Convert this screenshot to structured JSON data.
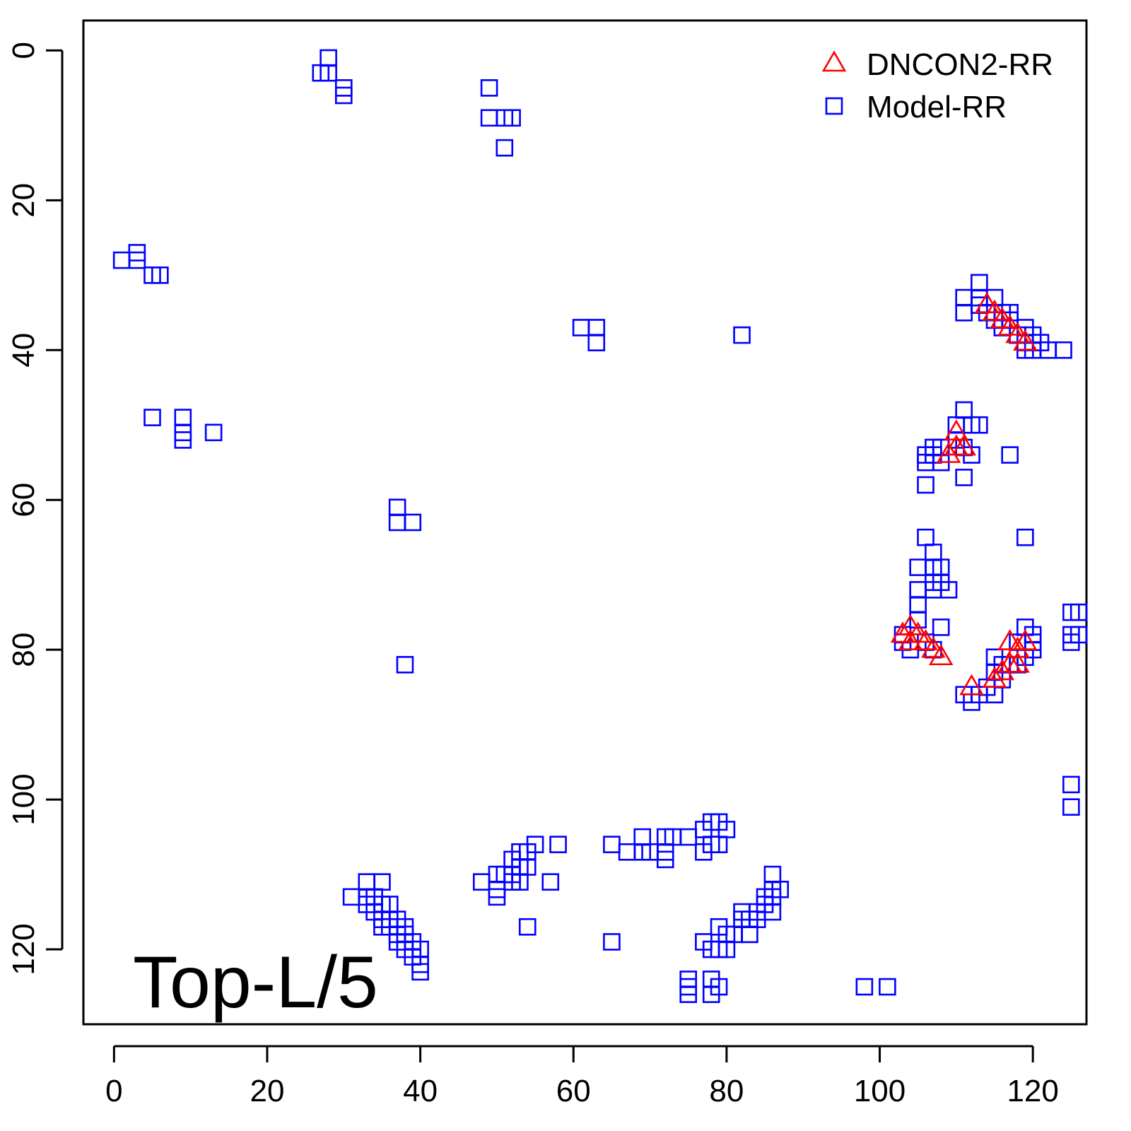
{
  "chart_data": {
    "type": "scatter",
    "title": "",
    "xlabel": "",
    "ylabel": "",
    "panel_label": "Top-L/5",
    "xlim": [
      -4,
      127
    ],
    "ylim": [
      130,
      -4
    ],
    "y_axis_reversed": true,
    "x_ticks": [
      0,
      20,
      40,
      60,
      80,
      100,
      120
    ],
    "y_ticks": [
      0,
      20,
      40,
      60,
      80,
      100,
      120
    ],
    "x_tick_labels": [
      "0",
      "20",
      "40",
      "60",
      "80",
      "100",
      "120"
    ],
    "y_tick_labels": [
      "0",
      "20",
      "40",
      "60",
      "80",
      "100",
      "120"
    ],
    "grid": false,
    "legend_position": "top-right",
    "series": [
      {
        "name": "DNCON2-RR",
        "marker": "triangle",
        "color": "#ff0000",
        "points": [
          [
            114,
            34
          ],
          [
            115,
            35
          ],
          [
            116,
            36
          ],
          [
            117,
            37
          ],
          [
            118,
            38
          ],
          [
            119,
            39
          ],
          [
            110,
            51
          ],
          [
            110,
            53
          ],
          [
            109,
            54
          ],
          [
            111,
            53
          ],
          [
            103,
            78
          ],
          [
            104,
            77
          ],
          [
            104,
            79
          ],
          [
            105,
            78
          ],
          [
            106,
            79
          ],
          [
            107,
            80
          ],
          [
            108,
            81
          ],
          [
            112,
            85
          ],
          [
            115,
            84
          ],
          [
            116,
            83
          ],
          [
            117,
            82
          ],
          [
            117,
            79
          ],
          [
            118,
            80
          ],
          [
            118,
            82
          ],
          [
            119,
            79
          ]
        ]
      },
      {
        "name": "Model-RR",
        "marker": "square",
        "color": "#0000ff",
        "points": [
          [
            28,
            1
          ],
          [
            27,
            3
          ],
          [
            28,
            3
          ],
          [
            30,
            5
          ],
          [
            30,
            6
          ],
          [
            49,
            5
          ],
          [
            49,
            9
          ],
          [
            51,
            9
          ],
          [
            52,
            9
          ],
          [
            51,
            13
          ],
          [
            1,
            28
          ],
          [
            3,
            27
          ],
          [
            3,
            28
          ],
          [
            5,
            30
          ],
          [
            6,
            30
          ],
          [
            5,
            49
          ],
          [
            9,
            49
          ],
          [
            9,
            51
          ],
          [
            9,
            52
          ],
          [
            13,
            51
          ],
          [
            61,
            37
          ],
          [
            63,
            37
          ],
          [
            63,
            39
          ],
          [
            82,
            38
          ],
          [
            37,
            61
          ],
          [
            37,
            63
          ],
          [
            39,
            63
          ],
          [
            38,
            82
          ],
          [
            113,
            31
          ],
          [
            111,
            33
          ],
          [
            113,
            33
          ],
          [
            115,
            33
          ],
          [
            111,
            35
          ],
          [
            113,
            34
          ],
          [
            114,
            35
          ],
          [
            116,
            35
          ],
          [
            117,
            35
          ],
          [
            115,
            36
          ],
          [
            117,
            36
          ],
          [
            116,
            37
          ],
          [
            119,
            37
          ],
          [
            118,
            38
          ],
          [
            120,
            38
          ],
          [
            119,
            39
          ],
          [
            121,
            39
          ],
          [
            119,
            40
          ],
          [
            120,
            40
          ],
          [
            122,
            40
          ],
          [
            124,
            40
          ],
          [
            111,
            48
          ],
          [
            110,
            50
          ],
          [
            112,
            50
          ],
          [
            113,
            50
          ],
          [
            110,
            52
          ],
          [
            111,
            53
          ],
          [
            112,
            54
          ],
          [
            107,
            53
          ],
          [
            108,
            53
          ],
          [
            106,
            54
          ],
          [
            107,
            54
          ],
          [
            106,
            55
          ],
          [
            108,
            55
          ],
          [
            106,
            58
          ],
          [
            111,
            57
          ],
          [
            117,
            54
          ],
          [
            106,
            65
          ],
          [
            107,
            67
          ],
          [
            105,
            69
          ],
          [
            107,
            69
          ],
          [
            108,
            69
          ],
          [
            107,
            71
          ],
          [
            108,
            71
          ],
          [
            105,
            72
          ],
          [
            107,
            72
          ],
          [
            109,
            72
          ],
          [
            105,
            74
          ],
          [
            105,
            76
          ],
          [
            108,
            77
          ],
          [
            119,
            65
          ],
          [
            103,
            78
          ],
          [
            103,
            79
          ],
          [
            104,
            80
          ],
          [
            106,
            79
          ],
          [
            107,
            80
          ],
          [
            119,
            77
          ],
          [
            118,
            79
          ],
          [
            120,
            78
          ],
          [
            120,
            79
          ],
          [
            120,
            80
          ],
          [
            125,
            75
          ],
          [
            126,
            75
          ],
          [
            125,
            78
          ],
          [
            126,
            78
          ],
          [
            125,
            79
          ],
          [
            119,
            81
          ],
          [
            117,
            82
          ],
          [
            118,
            82
          ],
          [
            115,
            81
          ],
          [
            116,
            82
          ],
          [
            115,
            83
          ],
          [
            116,
            84
          ],
          [
            114,
            85
          ],
          [
            115,
            86
          ],
          [
            113,
            86
          ],
          [
            111,
            86
          ],
          [
            112,
            87
          ],
          [
            125,
            98
          ],
          [
            125,
            101
          ],
          [
            31,
            113
          ],
          [
            33,
            111
          ],
          [
            35,
            111
          ],
          [
            33,
            113
          ],
          [
            34,
            113
          ],
          [
            33,
            114
          ],
          [
            35,
            114
          ],
          [
            36,
            114
          ],
          [
            34,
            115
          ],
          [
            35,
            116
          ],
          [
            36,
            116
          ],
          [
            37,
            116
          ],
          [
            35,
            117
          ],
          [
            36,
            117
          ],
          [
            38,
            117
          ],
          [
            37,
            118
          ],
          [
            38,
            118
          ],
          [
            37,
            119
          ],
          [
            39,
            119
          ],
          [
            38,
            120
          ],
          [
            40,
            120
          ],
          [
            39,
            121
          ],
          [
            40,
            122
          ],
          [
            40,
            123
          ],
          [
            48,
            111
          ],
          [
            50,
            110
          ],
          [
            51,
            110
          ],
          [
            50,
            112
          ],
          [
            52,
            110
          ],
          [
            52,
            111
          ],
          [
            50,
            113
          ],
          [
            53,
            111
          ],
          [
            53,
            109
          ],
          [
            52,
            108
          ],
          [
            54,
            107
          ],
          [
            55,
            106
          ],
          [
            54,
            109
          ],
          [
            53,
            107
          ],
          [
            57,
            111
          ],
          [
            58,
            106
          ],
          [
            54,
            117
          ],
          [
            65,
            106
          ],
          [
            67,
            107
          ],
          [
            69,
            105
          ],
          [
            69,
            107
          ],
          [
            70,
            107
          ],
          [
            72,
            105
          ],
          [
            73,
            105
          ],
          [
            72,
            108
          ],
          [
            72,
            107
          ],
          [
            75,
            105
          ],
          [
            77,
            104
          ],
          [
            77,
            107
          ],
          [
            78,
            103
          ],
          [
            78,
            106
          ],
          [
            79,
            103
          ],
          [
            80,
            104
          ],
          [
            79,
            106
          ],
          [
            65,
            119
          ],
          [
            77,
            119
          ],
          [
            79,
            117
          ],
          [
            78,
            120
          ],
          [
            79,
            120
          ],
          [
            80,
            120
          ],
          [
            80,
            118
          ],
          [
            81,
            118
          ],
          [
            82,
            116
          ],
          [
            82,
            115
          ],
          [
            83,
            116
          ],
          [
            83,
            118
          ],
          [
            84,
            115
          ],
          [
            84,
            116
          ],
          [
            85,
            113
          ],
          [
            85,
            114
          ],
          [
            86,
            112
          ],
          [
            86,
            113
          ],
          [
            86,
            110
          ],
          [
            86,
            115
          ],
          [
            87,
            112
          ],
          [
            75,
            124
          ],
          [
            75,
            125
          ],
          [
            75,
            126
          ],
          [
            78,
            124
          ],
          [
            78,
            126
          ],
          [
            79,
            125
          ],
          [
            98,
            125
          ],
          [
            101,
            125
          ]
        ]
      }
    ]
  }
}
